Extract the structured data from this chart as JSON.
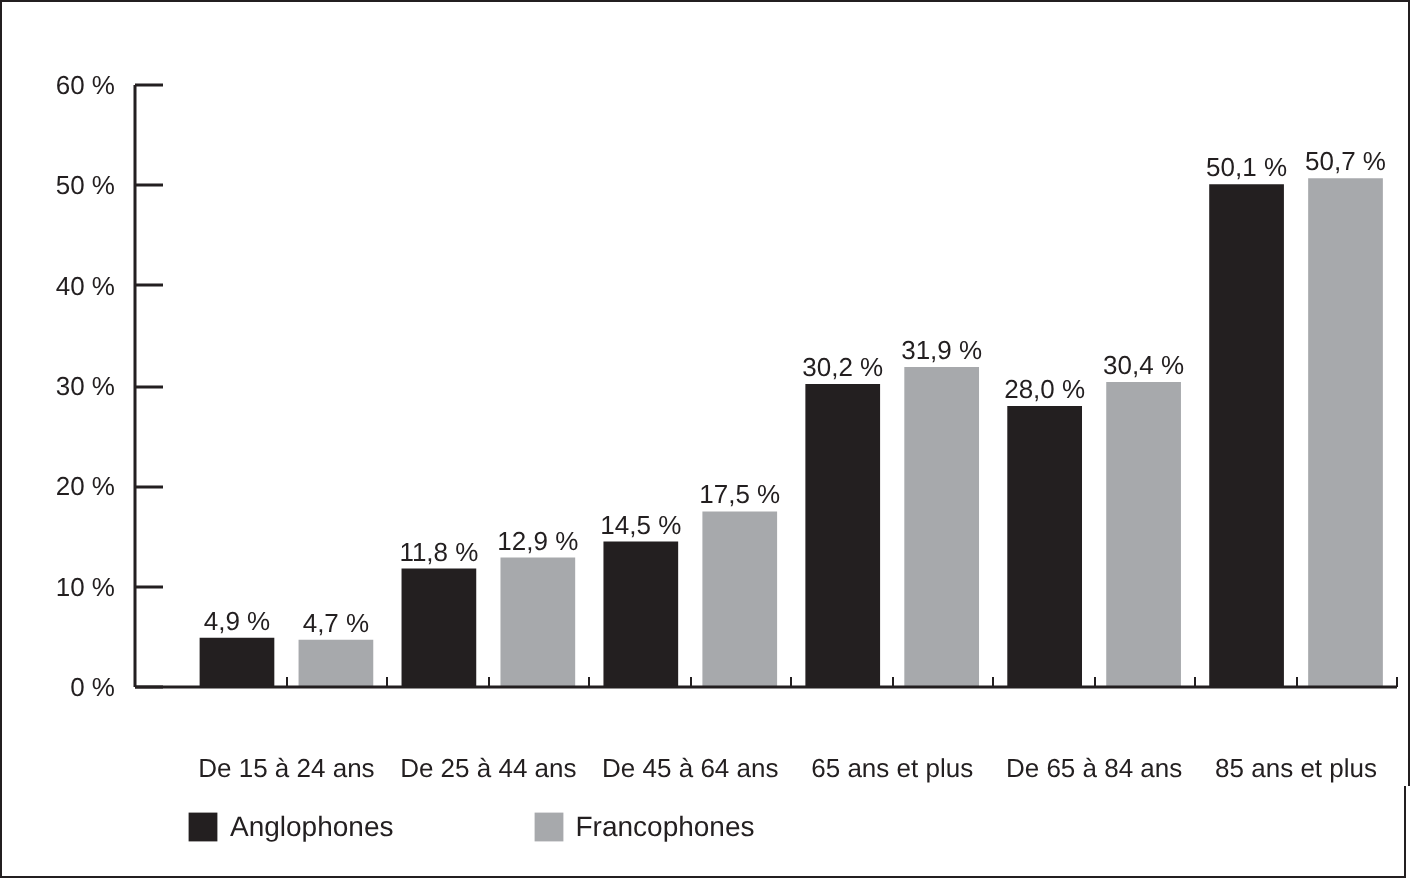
{
  "chart_data": {
    "type": "bar",
    "categories": [
      "De 15 à 24 ans",
      "De 25 à 44 ans",
      "De 45 à 64 ans",
      "65 ans et plus",
      "De 65 à 84 ans",
      "85 ans et plus"
    ],
    "series": [
      {
        "name": "Anglophones",
        "color": "#231f20",
        "values": [
          4.9,
          11.8,
          14.5,
          30.2,
          28.0,
          50.1
        ],
        "value_labels": [
          "4,9 %",
          "11,8 %",
          "14,5 %",
          "30,2 %",
          "28,0 %",
          "50,1 %"
        ]
      },
      {
        "name": "Francophones",
        "color": "#a7a9ac",
        "values": [
          4.7,
          12.9,
          17.5,
          31.9,
          30.4,
          50.7
        ],
        "value_labels": [
          "4,7 %",
          "12,9 %",
          "17,5 %",
          "31,9 %",
          "30,4 %",
          "50,7 %"
        ]
      }
    ],
    "ylim": [
      0,
      60
    ],
    "yticks": [
      {
        "value": 0,
        "label": "0 %"
      },
      {
        "value": 10,
        "label": "10 %"
      },
      {
        "value": 20,
        "label": "20 %"
      },
      {
        "value": 30,
        "label": "30 %"
      },
      {
        "value": 40,
        "label": "40 %"
      },
      {
        "value": 50,
        "label": "50 %"
      },
      {
        "value": 60,
        "label": "60 %"
      }
    ],
    "legend": "bottom left"
  }
}
